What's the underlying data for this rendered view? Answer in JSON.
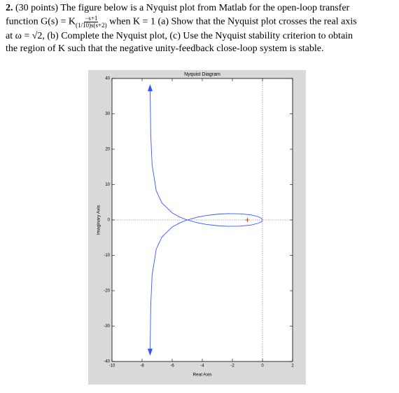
{
  "question": {
    "number": "2.",
    "points": "(30 points)",
    "line1": "The figure below is a Nyquist plot from Matlab for the open-loop transfer",
    "func_lead": "function G(s) = K",
    "numerator": "−s+1",
    "denominator": "(1/10)s(s+2)",
    "line2_rest": "when K = 1 (a) Show that the Nyquist plot crosses the real axis",
    "line3": "at ω = √2, (b) Complete the Nyquist plot, (c) Use the Nyquist stability criterion to obtain",
    "line4": "the region of K such that the negative unity-feedback close-loop system is stable."
  },
  "chart_data": {
    "type": "line",
    "title": "Nyquist Diagram",
    "x_label": "Real Axis",
    "y_label": "Imaginary Axis",
    "x": [
      -7.468,
      -7.426,
      -7.335,
      -7.059,
      -6.682,
      -6,
      -5.515,
      -5,
      -4.354,
      -3.75,
      -2.927,
      -2.308,
      -1.5,
      -0.75,
      -0.288,
      -0.074,
      -0.003
    ],
    "series": [
      {
        "color": "#3355ff",
        "values": [
          -37.98,
          -24.26,
          -15.57,
          -8.24,
          -4.8,
          -2,
          -0.858,
          0,
          0.76,
          1.25,
          1.659,
          1.795,
          1.75,
          1.417,
          0.942,
          0.493,
          0.1
        ]
      },
      {
        "color": "#3355ff",
        "values": [
          37.98,
          24.26,
          15.57,
          8.24,
          4.8,
          2,
          0.858,
          0,
          -0.76,
          -1.25,
          -1.659,
          -1.795,
          -1.75,
          -1.417,
          -0.942,
          -0.493,
          -0.1
        ]
      }
    ],
    "marker_point": {
      "x": -1,
      "y": 0,
      "color": "red"
    },
    "xlim": [
      -10,
      2
    ],
    "xticks": [
      -10,
      -8,
      -6,
      -4,
      -2,
      0,
      2
    ],
    "ylim": [
      -40,
      40
    ],
    "yticks": [
      -40,
      -30,
      -20,
      -10,
      0,
      10,
      20,
      30,
      40
    ],
    "grid": false
  }
}
